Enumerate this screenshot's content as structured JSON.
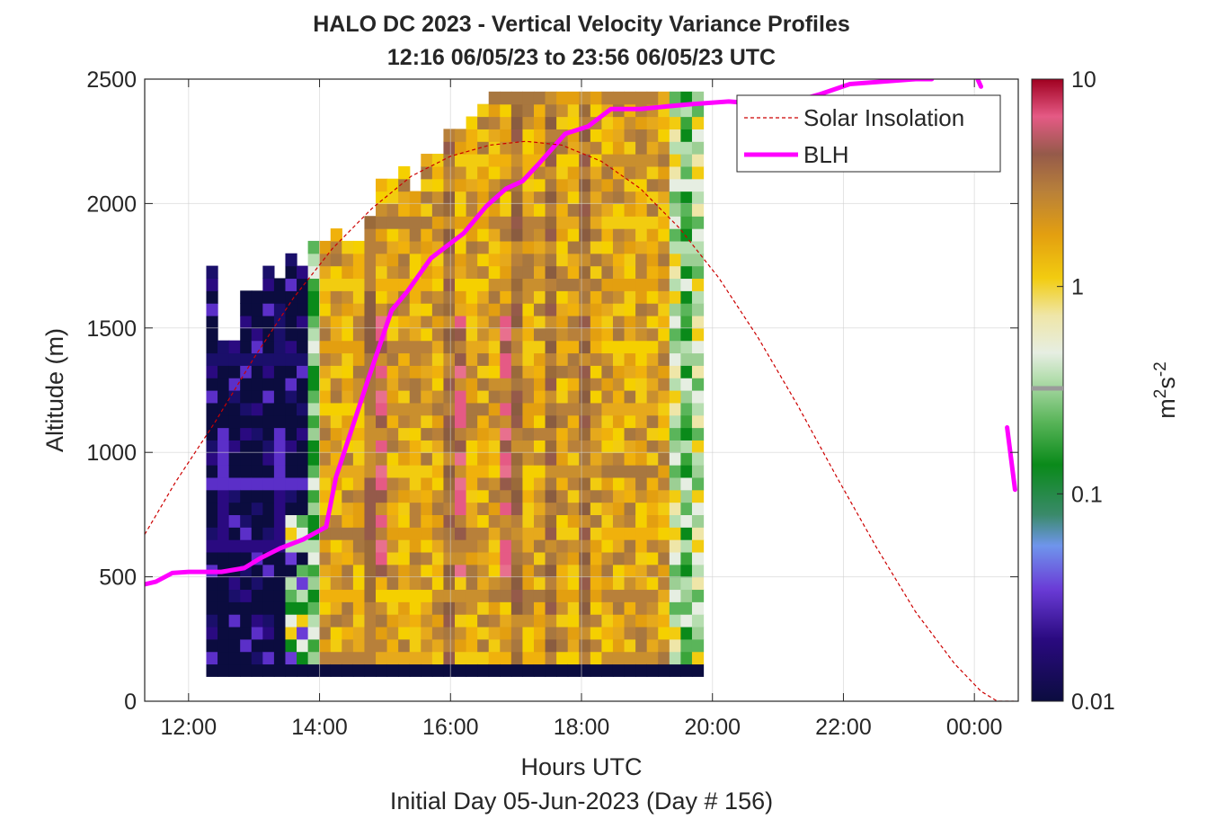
{
  "chart_data": {
    "type": "heatmap",
    "title": "HALO DC 2023 - Vertical Velocity Variance Profiles",
    "subtitle": "12:16 06/05/23 to 23:56 06/05/23  UTC",
    "xlabel": "Hours UTC",
    "xlabel2": "Initial Day 05-Jun-2023 (Day # 156)",
    "ylabel": "Altitude (m)",
    "xlim_hours": [
      11.33,
      24.67
    ],
    "ylim": [
      0,
      2500
    ],
    "x_ticks": [
      12,
      14,
      16,
      18,
      20,
      22,
      24
    ],
    "x_tick_labels": [
      "12:00",
      "14:00",
      "16:00",
      "18:00",
      "20:00",
      "22:00",
      "00:00"
    ],
    "y_ticks": [
      0,
      500,
      1000,
      1500,
      2000,
      2500
    ],
    "y_tick_labels": [
      "0",
      "500",
      "1000",
      "1500",
      "2000",
      "2500"
    ],
    "grid": true,
    "colorbar": {
      "label_base": "m",
      "label_sup1": "2",
      "label_mid": "s",
      "label_sup2": "-2",
      "scale": "log",
      "range": [
        0.01,
        10
      ],
      "ticks": [
        0.01,
        0.1,
        1,
        10
      ],
      "tick_labels": [
        "0.01",
        "0.1",
        "1",
        "10"
      ]
    },
    "legend": {
      "position": "top-right",
      "entries": [
        {
          "label": "Solar Insolation",
          "color": "#cc0000",
          "style": "dashed"
        },
        {
          "label": "BLH",
          "color": "#ff00ff",
          "style": "solid"
        }
      ]
    },
    "heatmap": {
      "time_start_h": 12.27,
      "time_step_h": 0.1725,
      "alt_start_m": 100,
      "alt_step_m": 50,
      "bottom_row_alt_m": [
        100,
        150
      ],
      "columns": [
        {
          "top": 1750,
          "profile": "low"
        },
        {
          "top": 1450,
          "profile": "low"
        },
        {
          "top": 1450,
          "profile": "low"
        },
        {
          "top": 1650,
          "profile": "low"
        },
        {
          "top": 1650,
          "profile": "low"
        },
        {
          "top": 1750,
          "profile": "low"
        },
        {
          "top": 1700,
          "profile": "low"
        },
        {
          "top": 1800,
          "profile": "trans"
        },
        {
          "top": 1750,
          "profile": "trans"
        },
        {
          "top": 1850,
          "profile": "green"
        },
        {
          "top": 1850,
          "profile": "mixed"
        },
        {
          "top": 1900,
          "profile": "mixed"
        },
        {
          "top": 1850,
          "profile": "mixed"
        },
        {
          "top": 1850,
          "profile": "mixed"
        },
        {
          "top": 1950,
          "profile": "brown"
        },
        {
          "top": 2100,
          "profile": "pink"
        },
        {
          "top": 2100,
          "profile": "mixed"
        },
        {
          "top": 2150,
          "profile": "mixed"
        },
        {
          "top": 2050,
          "profile": "mixed"
        },
        {
          "top": 2200,
          "profile": "mixed"
        },
        {
          "top": 2200,
          "profile": "mixed"
        },
        {
          "top": 2300,
          "profile": "brown"
        },
        {
          "top": 2300,
          "profile": "pink"
        },
        {
          "top": 2350,
          "profile": "mixed"
        },
        {
          "top": 2400,
          "profile": "mixed"
        },
        {
          "top": 2450,
          "profile": "mixed"
        },
        {
          "top": 2450,
          "profile": "pink"
        },
        {
          "top": 2450,
          "profile": "brown"
        },
        {
          "top": 2450,
          "profile": "mixed"
        },
        {
          "top": 2450,
          "profile": "mixed"
        },
        {
          "top": 2450,
          "profile": "brown"
        },
        {
          "top": 2450,
          "profile": "mixed"
        },
        {
          "top": 2450,
          "profile": "mixed"
        },
        {
          "top": 2450,
          "profile": "brown"
        },
        {
          "top": 2450,
          "profile": "mixed"
        },
        {
          "top": 2450,
          "profile": "mixed"
        },
        {
          "top": 2450,
          "profile": "mixed"
        },
        {
          "top": 2450,
          "profile": "mixed"
        },
        {
          "top": 2450,
          "profile": "mixed"
        },
        {
          "top": 2450,
          "profile": "mixed"
        },
        {
          "top": 2450,
          "profile": "mixed"
        },
        {
          "top": 2450,
          "profile": "light"
        },
        {
          "top": 2450,
          "profile": "green"
        },
        {
          "top": 2450,
          "profile": "light"
        }
      ]
    },
    "series": [
      {
        "name": "BLH",
        "x": [
          11.33,
          11.5,
          11.75,
          12.0,
          12.5,
          12.85,
          13.1,
          13.4,
          13.75,
          14.1,
          14.25,
          14.5,
          14.75,
          15.1,
          15.35,
          15.7,
          16.2,
          16.55,
          16.85,
          17.1,
          17.35,
          17.75,
          18.1,
          18.45,
          18.9,
          19.3,
          19.7,
          20.25,
          20.75,
          21.25,
          21.65,
          22.1,
          22.6,
          23.1,
          23.35
        ],
        "y": [
          470,
          480,
          515,
          520,
          520,
          535,
          575,
          615,
          650,
          700,
          900,
          1100,
          1300,
          1570,
          1650,
          1780,
          1880,
          1990,
          2060,
          2090,
          2160,
          2280,
          2310,
          2380,
          2380,
          2390,
          2400,
          2410,
          2400,
          2410,
          2440,
          2480,
          2490,
          2500,
          2500
        ]
      },
      {
        "name": "BLH",
        "x": [
          24.05,
          24.1
        ],
        "y": [
          2500,
          2470
        ]
      },
      {
        "name": "BLH",
        "x": [
          24.5,
          24.62
        ],
        "y": [
          1100,
          850
        ]
      },
      {
        "name": "Solar Insolation",
        "x": [
          11.33,
          11.8,
          12.4,
          13.0,
          13.6,
          14.2,
          14.8,
          15.4,
          16.0,
          16.6,
          17.15,
          17.7,
          18.3,
          18.9,
          19.5,
          20.1,
          20.7,
          21.3,
          21.9,
          22.5,
          23.1,
          23.7,
          24.1,
          24.35,
          24.6
        ],
        "y": [
          670,
          880,
          1120,
          1380,
          1620,
          1820,
          1980,
          2110,
          2190,
          2235,
          2250,
          2235,
          2170,
          2060,
          1900,
          1700,
          1460,
          1190,
          900,
          620,
          360,
          150,
          40,
          0,
          0
        ]
      }
    ]
  }
}
